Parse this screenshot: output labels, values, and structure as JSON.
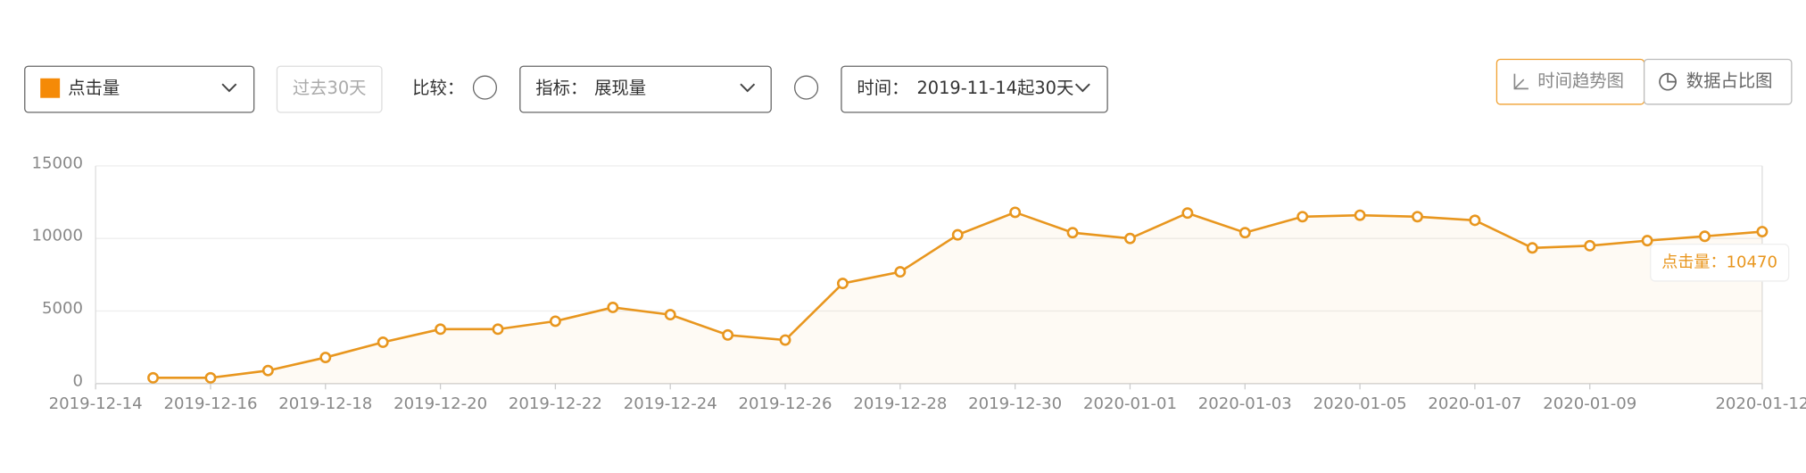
{
  "controls": {
    "range_button": "过去30天",
    "compare_label": "比较：",
    "indicator_label": "指标：",
    "indicator_value": "展现量",
    "time_label": "时间：",
    "time_value": "2019-11-14起30天",
    "tabs": [
      "时间趋势图",
      "数据占比图"
    ]
  },
  "chart_data": {
    "type": "line",
    "x": [
      "2019-12-15",
      "2019-12-16",
      "2019-12-17",
      "2019-12-18",
      "2019-12-19",
      "2019-12-20",
      "2019-12-21",
      "2019-12-22",
      "2019-12-23",
      "2019-12-24",
      "2019-12-25",
      "2019-12-26",
      "2019-12-27",
      "2019-12-28",
      "2019-12-29",
      "2019-12-30",
      "2019-12-31",
      "2020-01-01",
      "2020-01-02",
      "2020-01-03",
      "2020-01-04",
      "2020-01-05",
      "2020-01-06",
      "2020-01-07",
      "2020-01-08",
      "2020-01-09",
      "2020-01-10",
      "2020-01-11",
      "2020-01-12"
    ],
    "series": [
      {
        "name": "点击量",
        "color": "#e8961e",
        "values": [
          400,
          400,
          900,
          1800,
          2850,
          3750,
          3750,
          4300,
          5250,
          4750,
          3350,
          3000,
          6900,
          7700,
          10250,
          11800,
          10400,
          10000,
          11750,
          10400,
          11500,
          11600,
          11500,
          11250,
          9350,
          9500,
          9850,
          10150,
          10470
        ]
      }
    ],
    "xlim": [
      "2019-12-14",
      "2020-01-12"
    ],
    "xticks": [
      "2019-12-14",
      "2019-12-16",
      "2019-12-18",
      "2019-12-20",
      "2019-12-22",
      "2019-12-24",
      "2019-12-26",
      "2019-12-28",
      "2019-12-30",
      "2020-01-01",
      "2020-01-03",
      "2020-01-05",
      "2020-01-07",
      "2020-01-09",
      "2020-01-12"
    ],
    "ylim": [
      0,
      15000
    ],
    "yticks": [
      0,
      5000,
      10000,
      15000
    ],
    "grid": true,
    "area": true,
    "tooltip": "点击量：10470"
  }
}
